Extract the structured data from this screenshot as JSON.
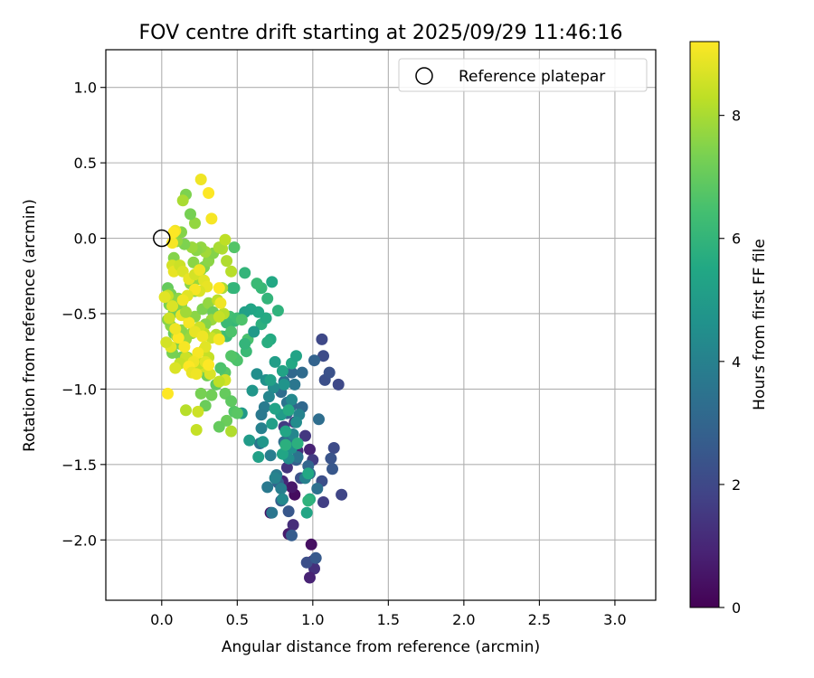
{
  "chart_data": {
    "type": "scatter",
    "title": "FOV centre drift starting at 2025/09/29 11:46:16",
    "xlabel": "Angular distance from reference (arcmin)",
    "ylabel": "Rotation from reference (arcmin)",
    "colorbar_label": "Hours from first FF file",
    "xlim": [
      -0.37,
      3.27
    ],
    "ylim": [
      -2.4,
      1.25
    ],
    "xticks": [
      0.0,
      0.5,
      1.0,
      1.5,
      2.0,
      2.5,
      3.0
    ],
    "xtick_labels": [
      "0.0",
      "0.5",
      "1.0",
      "1.5",
      "2.0",
      "2.5",
      "3.0"
    ],
    "yticks": [
      -2.0,
      -1.5,
      -1.0,
      -0.5,
      0.0,
      0.5,
      1.0
    ],
    "ytick_labels": [
      "−2.0",
      "−1.5",
      "−1.0",
      "−0.5",
      "0.0",
      "0.5",
      "1.0"
    ],
    "colorbar_range": [
      0,
      9.2
    ],
    "colorbar_ticks": [
      0,
      2,
      4,
      6,
      8
    ],
    "colorbar_tick_labels": [
      "0",
      "2",
      "4",
      "6",
      "8"
    ],
    "grid": true,
    "legend": {
      "position": "top-right",
      "entries": [
        "Reference platepar"
      ]
    },
    "reference_point": {
      "x": 0.0,
      "y": 0.0
    },
    "points": [
      [
        0.88,
        -1.7,
        0.3
      ],
      [
        0.99,
        -2.03,
        0.4
      ],
      [
        0.84,
        -1.96,
        0.7
      ],
      [
        0.72,
        -1.82,
        0.5
      ],
      [
        0.8,
        -1.73,
        0.8
      ],
      [
        0.86,
        -1.65,
        0.6
      ],
      [
        0.98,
        -1.4,
        0.9
      ],
      [
        1.0,
        -2.14,
        1.1
      ],
      [
        1.01,
        -2.19,
        1.3
      ],
      [
        0.98,
        -2.25,
        0.9
      ],
      [
        0.87,
        -1.9,
        1.2
      ],
      [
        0.8,
        -1.61,
        1.0
      ],
      [
        0.83,
        -1.52,
        1.4
      ],
      [
        0.9,
        -1.41,
        1.1
      ],
      [
        0.88,
        -1.22,
        1.3
      ],
      [
        0.84,
        -1.3,
        1.5
      ],
      [
        0.81,
        -1.25,
        1.6
      ],
      [
        0.95,
        -1.31,
        1.5
      ],
      [
        1.0,
        -1.47,
        1.6
      ],
      [
        1.07,
        -1.75,
        1.7
      ],
      [
        1.06,
        -0.67,
        2.0
      ],
      [
        1.07,
        -0.78,
        2.1
      ],
      [
        1.08,
        -0.94,
        2.2
      ],
      [
        1.11,
        -0.89,
        2.3
      ],
      [
        1.17,
        -0.97,
        2.0
      ],
      [
        1.19,
        -1.7,
        1.9
      ],
      [
        1.14,
        -1.39,
        2.1
      ],
      [
        1.12,
        -1.46,
        2.4
      ],
      [
        1.13,
        -1.53,
        2.5
      ],
      [
        1.06,
        -1.61,
        2.2
      ],
      [
        0.96,
        -2.15,
        2.2
      ],
      [
        1.02,
        -2.12,
        2.6
      ],
      [
        0.86,
        -1.97,
        2.7
      ],
      [
        0.77,
        -1.62,
        2.9
      ],
      [
        0.79,
        -1.74,
        2.8
      ],
      [
        0.84,
        -1.81,
        2.5
      ],
      [
        0.92,
        -1.59,
        2.3
      ],
      [
        0.89,
        -1.47,
        2.8
      ],
      [
        0.93,
        -1.12,
        3.1
      ],
      [
        0.86,
        -1.11,
        3.0
      ],
      [
        0.83,
        -1.16,
        3.2
      ],
      [
        0.79,
        -1.02,
        3.3
      ],
      [
        0.81,
        -0.95,
        3.4
      ],
      [
        0.86,
        -0.89,
        3.1
      ],
      [
        0.88,
        -0.97,
        3.6
      ],
      [
        0.93,
        -0.89,
        3.2
      ],
      [
        1.01,
        -0.81,
        2.9
      ],
      [
        1.04,
        -1.2,
        3.3
      ],
      [
        1.03,
        -1.66,
        3.4
      ],
      [
        0.98,
        -1.56,
        3.2
      ],
      [
        0.97,
        -1.51,
        3.0
      ],
      [
        0.9,
        -1.45,
        3.5
      ],
      [
        0.86,
        -1.33,
        3.7
      ],
      [
        0.81,
        -1.35,
        3.3
      ],
      [
        0.83,
        -1.09,
        3.5
      ],
      [
        0.68,
        -1.12,
        3.8
      ],
      [
        0.66,
        -1.17,
        3.7
      ],
      [
        0.65,
        -1.36,
        3.6
      ],
      [
        0.66,
        -1.26,
        4.0
      ],
      [
        0.72,
        -1.44,
        3.9
      ],
      [
        0.76,
        -1.57,
        3.8
      ],
      [
        0.7,
        -1.65,
        3.7
      ],
      [
        0.73,
        -1.82,
        3.6
      ],
      [
        0.75,
        -1.59,
        4.1
      ],
      [
        0.79,
        -1.66,
        3.9
      ],
      [
        0.8,
        -1.73,
        4.3
      ],
      [
        0.95,
        -1.59,
        4.0
      ],
      [
        0.98,
        -1.73,
        3.8
      ],
      [
        0.91,
        -1.17,
        4.1
      ],
      [
        0.89,
        -1.22,
        4.4
      ],
      [
        0.87,
        -1.3,
        4.2
      ],
      [
        0.86,
        -1.39,
        4.6
      ],
      [
        0.84,
        -1.46,
        4.5
      ],
      [
        0.86,
        -1.07,
        4.3
      ],
      [
        0.81,
        -0.97,
        4.7
      ],
      [
        0.74,
        -0.99,
        4.4
      ],
      [
        0.71,
        -1.05,
        4.2
      ],
      [
        0.69,
        -0.94,
        4.6
      ],
      [
        0.63,
        -0.9,
        4.5
      ],
      [
        0.6,
        -1.01,
        4.8
      ],
      [
        0.53,
        -1.16,
        4.9
      ],
      [
        0.58,
        -1.34,
        5.0
      ],
      [
        0.64,
        -1.45,
        5.2
      ],
      [
        0.67,
        -1.35,
        4.8
      ],
      [
        0.73,
        -1.23,
        5.1
      ],
      [
        0.79,
        -1.17,
        5.0
      ],
      [
        0.82,
        -1.28,
        5.4
      ],
      [
        0.75,
        -1.13,
        5.3
      ],
      [
        0.72,
        -0.94,
        5.2
      ],
      [
        0.75,
        -0.82,
        5.1
      ],
      [
        0.8,
        -0.88,
        5.3
      ],
      [
        0.86,
        -0.83,
        5.5
      ],
      [
        0.89,
        -0.78,
        5.3
      ],
      [
        0.84,
        -1.14,
        5.6
      ],
      [
        0.9,
        -1.36,
        5.8
      ],
      [
        0.97,
        -1.56,
        5.5
      ],
      [
        0.98,
        -1.73,
        5.7
      ],
      [
        0.96,
        -1.82,
        5.4
      ],
      [
        0.97,
        -1.74,
        5.9
      ],
      [
        0.8,
        -1.43,
        5.4
      ],
      [
        0.82,
        -1.37,
        5.8
      ],
      [
        0.72,
        -0.67,
        5.6
      ],
      [
        0.7,
        -0.69,
        5.7
      ],
      [
        0.66,
        -0.57,
        5.8
      ],
      [
        0.69,
        -0.53,
        5.6
      ],
      [
        0.64,
        -0.49,
        5.5
      ],
      [
        0.59,
        -0.47,
        5.4
      ],
      [
        0.77,
        -0.48,
        5.9
      ],
      [
        0.7,
        -0.4,
        6.0
      ],
      [
        0.66,
        -0.33,
        6.1
      ],
      [
        0.63,
        -0.3,
        6.2
      ],
      [
        0.55,
        -0.23,
        6.0
      ],
      [
        0.47,
        -0.33,
        6.3
      ],
      [
        0.48,
        -0.55,
        6.1
      ],
      [
        0.45,
        -0.52,
        6.4
      ],
      [
        0.43,
        -0.56,
        6.2
      ],
      [
        0.4,
        -0.65,
        6.5
      ],
      [
        0.43,
        -0.65,
        6.3
      ],
      [
        0.46,
        -0.62,
        6.6
      ],
      [
        0.48,
        -0.79,
        6.4
      ],
      [
        0.5,
        -0.81,
        6.6
      ],
      [
        0.56,
        -0.75,
        6.2
      ],
      [
        0.57,
        -0.67,
        6.5
      ],
      [
        0.55,
        -0.7,
        6.0
      ],
      [
        0.46,
        -0.78,
        6.7
      ],
      [
        0.42,
        -0.89,
        6.8
      ],
      [
        0.39,
        -0.86,
        6.6
      ],
      [
        0.36,
        -0.97,
        6.9
      ],
      [
        0.42,
        -1.03,
        7.0
      ],
      [
        0.48,
        -1.15,
        6.7
      ],
      [
        0.46,
        -1.08,
        6.9
      ],
      [
        0.5,
        -1.16,
        6.8
      ],
      [
        0.43,
        -1.21,
        7.1
      ],
      [
        0.38,
        -1.25,
        7.0
      ],
      [
        0.33,
        -1.04,
        7.2
      ],
      [
        0.29,
        -1.11,
        7.1
      ],
      [
        0.26,
        -1.03,
        7.3
      ],
      [
        0.3,
        -0.91,
        7.2
      ],
      [
        0.25,
        -0.87,
        7.4
      ],
      [
        0.21,
        -0.85,
        7.3
      ],
      [
        0.17,
        -0.79,
        7.5
      ],
      [
        0.13,
        -0.79,
        7.2
      ],
      [
        0.12,
        -0.7,
        7.4
      ],
      [
        0.07,
        -0.76,
        7.3
      ],
      [
        0.08,
        -0.63,
        7.1
      ],
      [
        0.06,
        -0.58,
        7.6
      ],
      [
        0.04,
        -0.54,
        7.5
      ],
      [
        0.08,
        -0.49,
        7.2
      ],
      [
        0.05,
        -0.44,
        7.4
      ],
      [
        0.04,
        -0.33,
        7.0
      ],
      [
        0.06,
        -0.37,
        7.3
      ],
      [
        0.11,
        -0.4,
        7.6
      ],
      [
        0.13,
        -0.44,
        7.5
      ],
      [
        0.18,
        -0.54,
        7.1
      ],
      [
        0.22,
        -0.52,
        7.6
      ],
      [
        0.27,
        -0.47,
        7.4
      ],
      [
        0.31,
        -0.43,
        7.7
      ],
      [
        0.34,
        -0.49,
        7.1
      ],
      [
        0.33,
        -0.54,
        7.8
      ],
      [
        0.29,
        -0.57,
        7.5
      ],
      [
        0.24,
        -0.61,
        7.9
      ],
      [
        0.2,
        -0.63,
        7.7
      ],
      [
        0.16,
        -0.67,
        7.8
      ],
      [
        0.13,
        -0.61,
        7.6
      ],
      [
        0.1,
        -0.65,
        7.9
      ],
      [
        0.19,
        -0.3,
        7.6
      ],
      [
        0.22,
        -0.35,
        7.5
      ],
      [
        0.24,
        -0.27,
        7.8
      ],
      [
        0.26,
        -0.21,
        7.7
      ],
      [
        0.28,
        -0.19,
        7.4
      ],
      [
        0.31,
        -0.15,
        7.6
      ],
      [
        0.34,
        -0.1,
        7.5
      ],
      [
        0.29,
        -0.09,
        7.9
      ],
      [
        0.26,
        -0.06,
        7.7
      ],
      [
        0.23,
        -0.08,
        7.6
      ],
      [
        0.2,
        -0.06,
        7.8
      ],
      [
        0.15,
        -0.04,
        7.4
      ],
      [
        0.1,
        -0.02,
        7.7
      ],
      [
        0.13,
        0.04,
        7.5
      ],
      [
        0.22,
        0.1,
        7.7
      ],
      [
        0.19,
        0.16,
        7.3
      ],
      [
        0.16,
        0.29,
        7.4
      ],
      [
        0.14,
        0.25,
        8.0
      ],
      [
        0.08,
        -0.13,
        7.5
      ],
      [
        0.21,
        -0.16,
        7.6
      ],
      [
        0.4,
        -0.07,
        8.1
      ],
      [
        0.38,
        -0.06,
        8.0
      ],
      [
        0.43,
        -0.15,
        8.1
      ],
      [
        0.46,
        -0.22,
        8.2
      ],
      [
        0.4,
        -0.33,
        8.0
      ],
      [
        0.37,
        -0.41,
        8.3
      ],
      [
        0.41,
        -0.5,
        8.2
      ],
      [
        0.38,
        -0.52,
        8.4
      ],
      [
        0.36,
        -0.64,
        8.1
      ],
      [
        0.33,
        -0.66,
        8.5
      ],
      [
        0.28,
        -0.63,
        8.3
      ],
      [
        0.25,
        -0.59,
        8.5
      ],
      [
        0.28,
        -0.74,
        8.2
      ],
      [
        0.31,
        -0.79,
        8.4
      ],
      [
        0.28,
        -0.85,
        8.6
      ],
      [
        0.25,
        -0.83,
        8.3
      ],
      [
        0.16,
        -1.14,
        8.2
      ],
      [
        0.24,
        -1.15,
        8.5
      ],
      [
        0.23,
        -1.27,
        8.4
      ],
      [
        0.46,
        -1.28,
        8.1
      ],
      [
        0.42,
        -0.94,
        8.6
      ],
      [
        0.38,
        -0.95,
        8.3
      ],
      [
        0.32,
        -0.9,
        8.7
      ],
      [
        0.29,
        -0.82,
        8.8
      ],
      [
        0.21,
        -0.81,
        8.6
      ],
      [
        0.16,
        -0.79,
        8.5
      ],
      [
        0.12,
        -0.83,
        8.4
      ],
      [
        0.09,
        -0.86,
        8.7
      ],
      [
        0.06,
        -0.72,
        8.8
      ],
      [
        0.03,
        -0.69,
        8.6
      ],
      [
        0.05,
        -0.53,
        8.5
      ],
      [
        0.07,
        -0.45,
        8.7
      ],
      [
        0.04,
        -0.38,
        8.4
      ],
      [
        0.02,
        -0.39,
        8.8
      ],
      [
        0.07,
        -0.18,
        8.6
      ],
      [
        0.08,
        -0.22,
        8.9
      ],
      [
        0.12,
        -0.18,
        8.5
      ],
      [
        0.14,
        -0.22,
        8.7
      ],
      [
        0.18,
        -0.27,
        8.9
      ],
      [
        0.22,
        -0.24,
        8.6
      ],
      [
        0.25,
        -0.21,
        9.0
      ],
      [
        0.28,
        -0.28,
        8.8
      ],
      [
        0.3,
        -0.32,
        8.9
      ],
      [
        0.25,
        -0.35,
        8.7
      ],
      [
        0.22,
        -0.34,
        9.1
      ],
      [
        0.17,
        -0.38,
        8.8
      ],
      [
        0.14,
        -0.41,
        9.0
      ],
      [
        0.13,
        -0.51,
        8.9
      ],
      [
        0.18,
        -0.56,
        9.1
      ],
      [
        0.22,
        -0.62,
        8.9
      ],
      [
        0.27,
        -0.65,
        9.0
      ],
      [
        0.29,
        -0.72,
        8.8
      ],
      [
        0.24,
        -0.76,
        9.1
      ],
      [
        0.21,
        -0.82,
        9.0
      ],
      [
        0.18,
        -0.85,
        9.2
      ],
      [
        0.2,
        -0.89,
        8.9
      ],
      [
        0.15,
        -0.72,
        9.1
      ],
      [
        0.11,
        -0.66,
        9.2
      ],
      [
        0.09,
        -0.6,
        9.0
      ],
      [
        0.07,
        -0.03,
        9.1
      ],
      [
        0.09,
        0.05,
        9.0
      ],
      [
        0.08,
        0.04,
        9.2
      ],
      [
        0.26,
        0.39,
        9.0
      ],
      [
        0.31,
        0.3,
        9.2
      ],
      [
        0.33,
        0.13,
        9.1
      ],
      [
        0.38,
        -0.33,
        9.2
      ],
      [
        0.39,
        -0.43,
        9.0
      ],
      [
        0.38,
        -0.67,
        9.1
      ],
      [
        0.31,
        -0.84,
        9.2
      ],
      [
        0.23,
        -0.9,
        9.0
      ],
      [
        0.04,
        -1.03,
        9.2
      ],
      [
        0.42,
        -0.01,
        8.3
      ],
      [
        0.48,
        -0.06,
        6.7
      ],
      [
        0.48,
        -0.33,
        6.0
      ],
      [
        0.5,
        -0.53,
        6.3
      ],
      [
        0.55,
        -0.49,
        5.2
      ],
      [
        0.61,
        -0.62,
        4.9
      ],
      [
        0.73,
        -0.29,
        5.5
      ],
      [
        0.53,
        -0.54,
        6.6
      ],
      [
        0.16,
        -0.49,
        7.9
      ]
    ]
  }
}
